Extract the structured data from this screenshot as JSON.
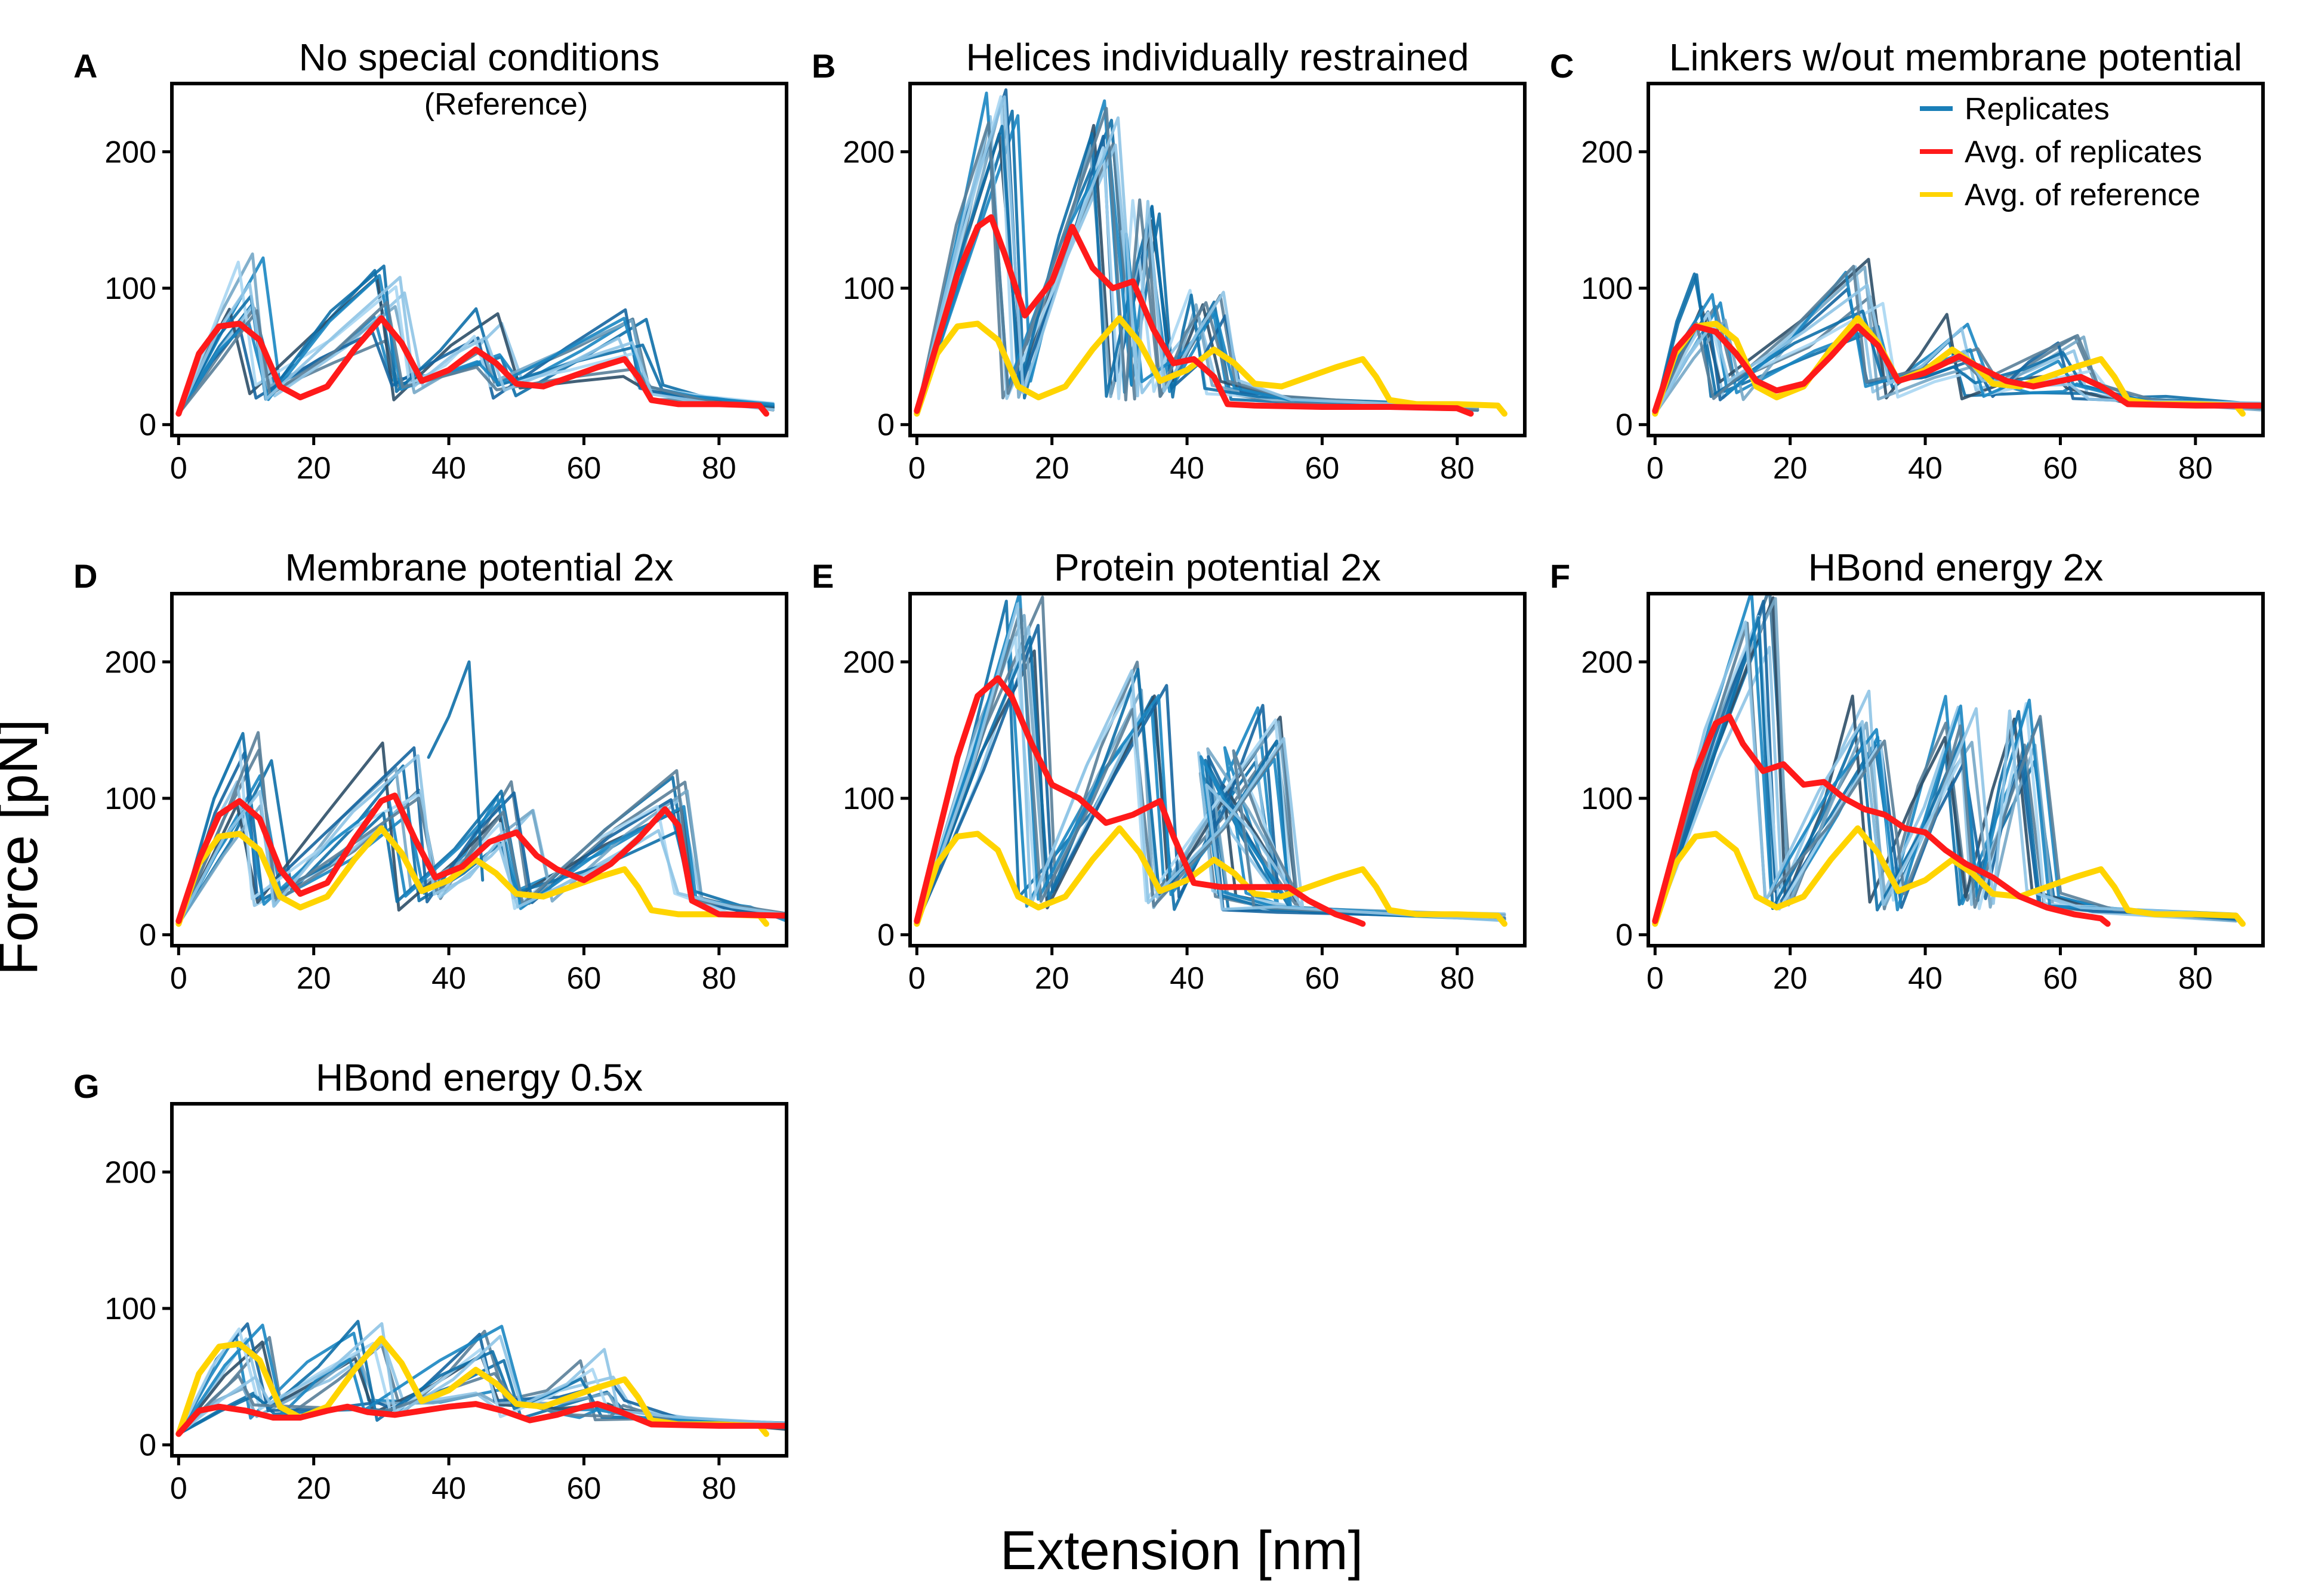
{
  "figure": {
    "ylabel": "Force [pN]",
    "xlabel": "Extension [nm]",
    "legend": [
      {
        "label": "Replicates",
        "color": "#1a7fb8"
      },
      {
        "label": "Avg. of replicates",
        "color": "#ff1a1a"
      },
      {
        "label": "Avg. of reference",
        "color": "#ffd400"
      }
    ]
  },
  "colors": {
    "replicate_palette": [
      "#0e6fa8",
      "#1a86c2",
      "#5a7f99",
      "#8fc4e6",
      "#2d4f68",
      "#76a7c7",
      "#1565a0",
      "#a9d6f2"
    ],
    "avg_replicates": "#ff1a1a",
    "avg_reference": "#ffd400"
  },
  "chart_data": [
    {
      "type": "line",
      "letter": "A",
      "title": "No special conditions",
      "subtitle": "(Reference)",
      "xlim": [
        -1,
        90
      ],
      "ylim": [
        -8,
        250
      ],
      "xticks": [
        0,
        20,
        40,
        60,
        80
      ],
      "yticks": [
        0,
        100,
        200
      ],
      "show_legend": false,
      "replicate_count": 12,
      "replicate_peaks": [
        [
          10,
          100,
          30
        ],
        [
          31,
          90,
          30
        ],
        [
          46,
          65,
          25
        ],
        [
          67,
          60,
          25
        ]
      ],
      "replicate_end": 88,
      "avg_replicates": {
        "x": [
          0,
          3,
          6,
          9,
          12,
          15,
          18,
          22,
          26,
          30,
          33,
          36,
          40,
          44,
          47,
          50,
          54,
          58,
          62,
          66,
          68,
          70,
          74,
          80,
          86,
          87
        ],
        "y": [
          8,
          52,
          72,
          74,
          62,
          28,
          20,
          28,
          55,
          78,
          60,
          32,
          40,
          55,
          45,
          30,
          28,
          35,
          42,
          48,
          35,
          18,
          15,
          15,
          14,
          8
        ]
      },
      "avg_reference": null
    },
    {
      "type": "line",
      "letter": "B",
      "title": "Helices individually restrained",
      "subtitle": "",
      "xlim": [
        -1,
        90
      ],
      "ylim": [
        -8,
        250
      ],
      "xticks": [
        0,
        20,
        40,
        60,
        80
      ],
      "yticks": [
        0,
        100,
        200
      ],
      "show_legend": false,
      "replicate_count": 12,
      "replicate_peaks": [
        [
          12,
          230,
          18
        ],
        [
          27,
          220,
          18
        ],
        [
          33,
          150,
          15
        ],
        [
          43,
          90,
          15
        ]
      ],
      "replicate_end": 83,
      "avg_replicates": {
        "x": [
          0,
          3,
          6,
          9,
          11,
          13,
          16,
          20,
          23,
          26,
          29,
          32,
          35,
          38,
          41,
          44,
          46,
          50,
          60,
          70,
          80,
          82
        ],
        "y": [
          10,
          60,
          110,
          145,
          152,
          125,
          80,
          105,
          145,
          115,
          100,
          105,
          70,
          45,
          48,
          35,
          15,
          14,
          13,
          13,
          12,
          8
        ]
      },
      "avg_reference": {
        "x": [
          0,
          3,
          6,
          9,
          12,
          15,
          18,
          22,
          26,
          30,
          33,
          36,
          40,
          44,
          47,
          50,
          54,
          58,
          62,
          66,
          68,
          70,
          74,
          80,
          86,
          87
        ],
        "y": [
          8,
          52,
          72,
          74,
          62,
          28,
          20,
          28,
          55,
          78,
          60,
          32,
          40,
          55,
          45,
          30,
          28,
          35,
          42,
          48,
          35,
          18,
          15,
          15,
          14,
          8
        ]
      }
    },
    {
      "type": "line",
      "letter": "C",
      "title": "Linkers w/out membrane potential",
      "subtitle": "",
      "xlim": [
        -1,
        90
      ],
      "ylim": [
        -8,
        250
      ],
      "xticks": [
        0,
        20,
        40,
        60,
        80
      ],
      "yticks": [
        0,
        100,
        200
      ],
      "show_legend": true,
      "replicate_count": 12,
      "replicate_peaks": [
        [
          8,
          100,
          30
        ],
        [
          31,
          95,
          30
        ],
        [
          46,
          60,
          25
        ],
        [
          62,
          45,
          25
        ]
      ],
      "replicate_end": 90,
      "avg_replicates": {
        "x": [
          0,
          3,
          6,
          9,
          12,
          15,
          18,
          22,
          26,
          30,
          33,
          36,
          40,
          45,
          48,
          52,
          56,
          60,
          63,
          66,
          70,
          80,
          90
        ],
        "y": [
          10,
          55,
          72,
          68,
          52,
          32,
          25,
          30,
          50,
          72,
          58,
          32,
          38,
          50,
          42,
          32,
          28,
          32,
          35,
          28,
          15,
          14,
          14
        ]
      },
      "avg_reference": {
        "x": [
          0,
          3,
          6,
          9,
          12,
          15,
          18,
          22,
          26,
          30,
          33,
          36,
          40,
          44,
          47,
          50,
          54,
          58,
          62,
          66,
          68,
          70,
          74,
          80,
          86,
          87
        ],
        "y": [
          8,
          52,
          72,
          74,
          62,
          28,
          20,
          28,
          55,
          78,
          60,
          32,
          40,
          55,
          45,
          30,
          28,
          35,
          42,
          48,
          35,
          18,
          15,
          15,
          14,
          8
        ]
      }
    },
    {
      "type": "line",
      "letter": "D",
      "title": "Membrane potential 2x",
      "subtitle": "",
      "xlim": [
        -1,
        90
      ],
      "ylim": [
        -8,
        250
      ],
      "xticks": [
        0,
        20,
        40,
        60,
        80
      ],
      "yticks": [
        0,
        100,
        200
      ],
      "show_legend": false,
      "replicate_count": 12,
      "replicate_peaks": [
        [
          11,
          120,
          30
        ],
        [
          33,
          115,
          30
        ],
        [
          50,
          95,
          30
        ],
        [
          73,
          105,
          30
        ]
      ],
      "replicate_end": 90,
      "extra_spike": {
        "x": [
          37,
          40,
          43,
          45
        ],
        "y": [
          130,
          160,
          200,
          40
        ]
      },
      "avg_replicates": {
        "x": [
          0,
          3,
          6,
          9,
          12,
          15,
          18,
          22,
          26,
          30,
          32,
          35,
          38,
          42,
          46,
          50,
          53,
          56,
          60,
          64,
          68,
          72,
          74,
          76,
          80,
          90
        ],
        "y": [
          10,
          55,
          88,
          98,
          85,
          48,
          30,
          38,
          70,
          98,
          102,
          70,
          42,
          50,
          68,
          75,
          58,
          48,
          40,
          52,
          70,
          92,
          80,
          25,
          15,
          14
        ]
      },
      "avg_reference": {
        "x": [
          0,
          3,
          6,
          9,
          12,
          15,
          18,
          22,
          26,
          30,
          33,
          36,
          40,
          44,
          47,
          50,
          54,
          58,
          62,
          66,
          68,
          70,
          74,
          80,
          86,
          87
        ],
        "y": [
          8,
          52,
          72,
          74,
          62,
          28,
          20,
          28,
          55,
          78,
          60,
          32,
          40,
          55,
          45,
          30,
          28,
          35,
          42,
          48,
          35,
          18,
          15,
          15,
          14,
          8
        ]
      }
    },
    {
      "type": "line",
      "letter": "E",
      "title": "Protein potential 2x",
      "subtitle": "",
      "xlim": [
        -1,
        90
      ],
      "ylim": [
        -8,
        250
      ],
      "xticks": [
        0,
        20,
        40,
        60,
        80
      ],
      "yticks": [
        0,
        100,
        200
      ],
      "show_legend": false,
      "replicate_count": 12,
      "replicate_peaks": [
        [
          16,
          230,
          25
        ],
        [
          34,
          180,
          20
        ],
        [
          52,
          150,
          25
        ],
        [
          44,
          120,
          20
        ]
      ],
      "replicate_end": 87,
      "avg_replicates": {
        "x": [
          0,
          3,
          6,
          9,
          12,
          14,
          17,
          20,
          24,
          28,
          32,
          36,
          38,
          41,
          45,
          50,
          55,
          58,
          62,
          65,
          66
        ],
        "y": [
          10,
          70,
          130,
          175,
          188,
          175,
          140,
          110,
          100,
          82,
          88,
          98,
          72,
          38,
          35,
          35,
          35,
          25,
          15,
          10,
          8
        ]
      },
      "avg_reference": {
        "x": [
          0,
          3,
          6,
          9,
          12,
          15,
          18,
          22,
          26,
          30,
          33,
          36,
          40,
          44,
          47,
          50,
          54,
          58,
          62,
          66,
          68,
          70,
          74,
          80,
          86,
          87
        ],
        "y": [
          8,
          52,
          72,
          74,
          62,
          28,
          20,
          28,
          55,
          78,
          60,
          32,
          40,
          55,
          45,
          30,
          28,
          35,
          42,
          48,
          35,
          18,
          15,
          15,
          14,
          8
        ]
      }
    },
    {
      "type": "line",
      "letter": "F",
      "title": "HBond energy 2x",
      "subtitle": "",
      "xlim": [
        -1,
        90
      ],
      "ylim": [
        -8,
        250
      ],
      "xticks": [
        0,
        20,
        40,
        60,
        80
      ],
      "yticks": [
        0,
        100,
        200
      ],
      "show_legend": false,
      "replicate_count": 12,
      "replicate_peaks": [
        [
          15,
          230,
          25
        ],
        [
          32,
          160,
          20
        ],
        [
          45,
          150,
          25
        ],
        [
          55,
          150,
          25
        ]
      ],
      "replicate_end": 86,
      "avg_replicates": {
        "x": [
          0,
          3,
          6,
          9,
          11,
          13,
          16,
          19,
          22,
          25,
          28,
          31,
          34,
          37,
          40,
          43,
          46,
          50,
          54,
          58,
          62,
          66,
          67
        ],
        "y": [
          10,
          65,
          120,
          155,
          160,
          140,
          120,
          125,
          110,
          112,
          100,
          92,
          88,
          78,
          75,
          62,
          52,
          42,
          28,
          20,
          15,
          12,
          8
        ]
      },
      "avg_reference": {
        "x": [
          0,
          3,
          6,
          9,
          12,
          15,
          18,
          22,
          26,
          30,
          33,
          36,
          40,
          44,
          47,
          50,
          54,
          58,
          62,
          66,
          68,
          70,
          74,
          80,
          86,
          87
        ],
        "y": [
          8,
          52,
          72,
          74,
          62,
          28,
          20,
          28,
          55,
          78,
          60,
          32,
          40,
          55,
          45,
          30,
          28,
          35,
          42,
          48,
          35,
          18,
          15,
          15,
          14,
          8
        ]
      }
    },
    {
      "type": "line",
      "letter": "G",
      "title": "HBond energy 0.5x",
      "subtitle": "",
      "xlim": [
        -1,
        90
      ],
      "ylim": [
        -8,
        250
      ],
      "xticks": [
        0,
        20,
        40,
        60,
        80
      ],
      "yticks": [
        0,
        100,
        200
      ],
      "show_legend": false,
      "replicate_count": 12,
      "replicate_peaks": [
        [
          11,
          70,
          35
        ],
        [
          28,
          60,
          35
        ],
        [
          47,
          60,
          30
        ],
        [
          62,
          40,
          30
        ]
      ],
      "replicate_end": 90,
      "avg_replicates": {
        "x": [
          0,
          3,
          6,
          10,
          14,
          18,
          22,
          25,
          28,
          32,
          36,
          40,
          44,
          48,
          52,
          56,
          60,
          62,
          65,
          70,
          80,
          90
        ],
        "y": [
          8,
          25,
          28,
          25,
          20,
          20,
          25,
          28,
          24,
          22,
          25,
          28,
          30,
          25,
          18,
          22,
          28,
          30,
          25,
          15,
          14,
          14
        ]
      },
      "avg_reference": {
        "x": [
          0,
          3,
          6,
          9,
          12,
          15,
          18,
          22,
          26,
          30,
          33,
          36,
          40,
          44,
          47,
          50,
          54,
          58,
          62,
          66,
          68,
          70,
          74,
          80,
          86,
          87
        ],
        "y": [
          8,
          52,
          72,
          74,
          62,
          28,
          20,
          28,
          55,
          78,
          60,
          32,
          40,
          55,
          45,
          30,
          28,
          35,
          42,
          48,
          35,
          18,
          15,
          15,
          14,
          8
        ]
      }
    }
  ]
}
